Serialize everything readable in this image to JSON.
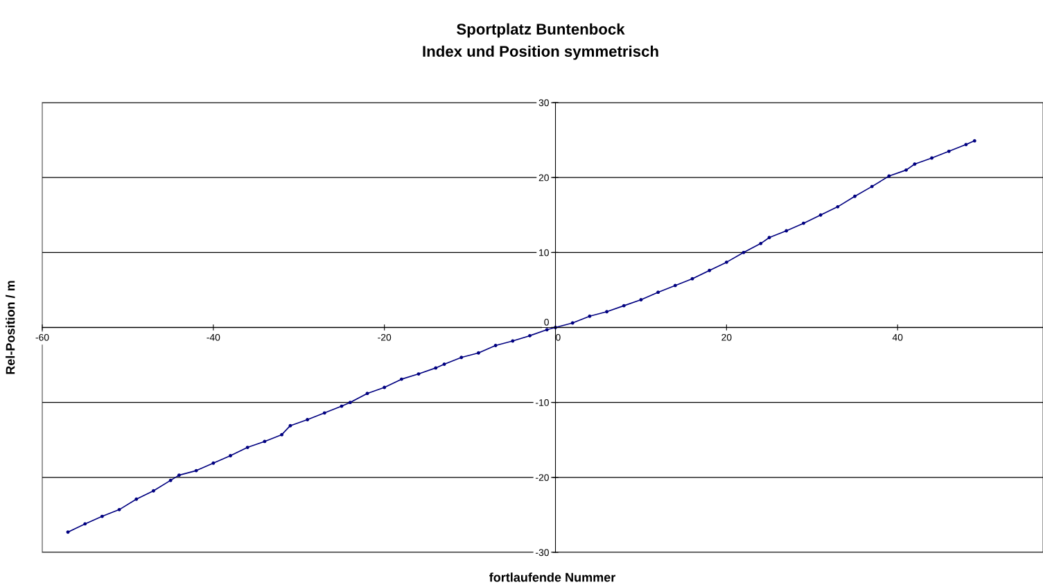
{
  "chart_data": {
    "type": "line",
    "title": "Sportplatz Buntenbock",
    "subtitle": "Index und Position symmetrisch",
    "xlabel": "fortlaufende Nummer",
    "ylabel": "Rel-Position / m",
    "xlim": [
      -60,
      57
    ],
    "xticks": [
      -60,
      -40,
      -20,
      0,
      20,
      40
    ],
    "ylim": [
      -30,
      30
    ],
    "yticks": [
      -30,
      -20,
      -10,
      0,
      10,
      20,
      30
    ],
    "grid": "y",
    "marker": "circle",
    "line_style": "solid",
    "series": [
      {
        "color": "#000080",
        "x": [
          -57,
          -55,
          -53,
          -51,
          -49,
          -47,
          -45,
          -44,
          -42,
          -40,
          -38,
          -36,
          -34,
          -32,
          -31,
          -29,
          -27,
          -25,
          -24,
          -22,
          -20,
          -18,
          -16,
          -14,
          -13,
          -11,
          -9,
          -7,
          -5,
          -3,
          -1,
          0,
          2,
          4,
          6,
          8,
          10,
          12,
          14,
          16,
          18,
          20,
          22,
          24,
          25,
          27,
          29,
          31,
          33,
          35,
          37,
          39,
          41,
          42,
          44,
          46,
          48,
          49
        ],
        "values": [
          -27.3,
          -26.2,
          -25.2,
          -24.3,
          -22.9,
          -21.8,
          -20.4,
          -19.7,
          -19.1,
          -18.1,
          -17.1,
          -16.0,
          -15.2,
          -14.3,
          -13.1,
          -12.3,
          -11.4,
          -10.5,
          -10.0,
          -8.8,
          -8.0,
          -6.9,
          -6.2,
          -5.4,
          -4.9,
          -4.0,
          -3.4,
          -2.4,
          -1.8,
          -1.1,
          -0.3,
          0,
          0.6,
          1.5,
          2.1,
          2.9,
          3.7,
          4.7,
          5.6,
          6.5,
          7.6,
          8.7,
          10.0,
          11.2,
          12.0,
          12.9,
          13.9,
          15.0,
          16.1,
          17.5,
          18.8,
          20.2,
          21.0,
          21.8,
          22.6,
          23.5,
          24.4,
          24.9
        ]
      }
    ]
  }
}
